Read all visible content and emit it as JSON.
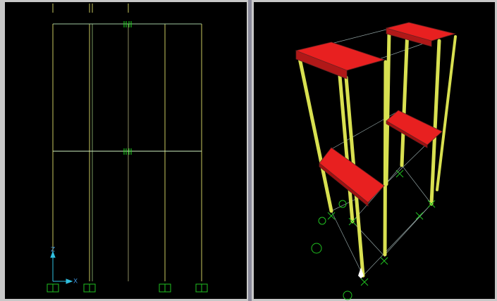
{
  "left_view": {
    "axis_labels": {
      "z": "Z",
      "x": "X"
    }
  }
}
